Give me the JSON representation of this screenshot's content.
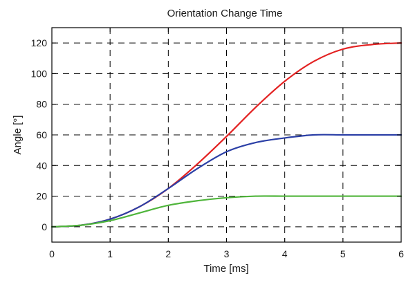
{
  "chart_data": {
    "type": "line",
    "title": "Orientation Change Time",
    "xlabel": "Time [ms]",
    "ylabel": "Angle [°]",
    "xlim": [
      0,
      6
    ],
    "ylim": [
      -10,
      130
    ],
    "xticks": [
      0,
      1,
      2,
      3,
      4,
      5,
      6
    ],
    "yticks": [
      0,
      20,
      40,
      60,
      80,
      100,
      120
    ],
    "xtick_labels": [
      "0",
      "1",
      "2",
      "3",
      "4",
      "5",
      "6"
    ],
    "ytick_labels": [
      "0",
      "20",
      "40",
      "60",
      "80",
      "100",
      "120"
    ],
    "grid": true,
    "series": [
      {
        "color": "#e32222",
        "x": [
          0,
          0.5,
          1.0,
          1.5,
          2.0,
          2.5,
          3.0,
          3.5,
          4.0,
          4.5,
          5.0,
          5.5,
          6.0
        ],
        "y": [
          0,
          1,
          5,
          13,
          25,
          41,
          59,
          78,
          95,
          108,
          116,
          119,
          120
        ]
      },
      {
        "color": "#2b3fa6",
        "x": [
          0,
          0.5,
          1.0,
          1.5,
          2.0,
          2.5,
          3.0,
          3.5,
          4.0,
          4.5,
          5.0,
          5.5,
          6.0
        ],
        "y": [
          0,
          1,
          5,
          13,
          25,
          38,
          49,
          55,
          58,
          60,
          60,
          60,
          60
        ]
      },
      {
        "color": "#4fb53b",
        "x": [
          0,
          0.5,
          1.0,
          1.5,
          2.0,
          2.5,
          3.0,
          3.5,
          4.0,
          4.5,
          5.0,
          5.5,
          6.0
        ],
        "y": [
          0,
          1,
          4,
          9,
          14,
          17,
          19,
          20,
          20,
          20,
          20,
          20,
          20
        ]
      }
    ]
  }
}
